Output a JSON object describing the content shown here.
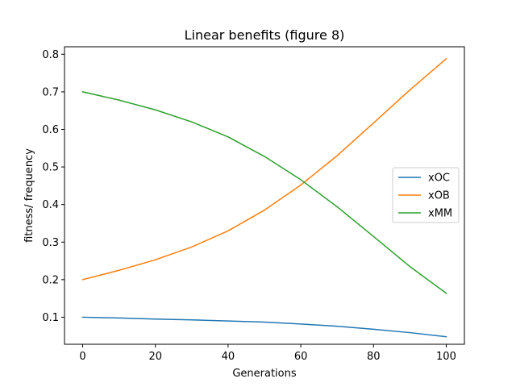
{
  "chart_data": {
    "type": "line",
    "title": "Linear benefits (figure 8)",
    "xlabel": "Generations",
    "ylabel": "fitness/ frequency",
    "xlim": [
      -5,
      105
    ],
    "ylim": [
      0.028,
      0.82
    ],
    "xticks": [
      0,
      20,
      40,
      60,
      80,
      100
    ],
    "yticks": [
      0.1,
      0.2,
      0.3,
      0.4,
      0.5,
      0.6,
      0.7,
      0.8
    ],
    "xtick_labels": [
      "0",
      "20",
      "40",
      "60",
      "80",
      "100"
    ],
    "ytick_labels": [
      "0.1",
      "0.2",
      "0.3",
      "0.4",
      "0.5",
      "0.6",
      "0.7",
      "0.8"
    ],
    "grid": false,
    "legend_position": "center-right",
    "x": [
      0,
      10,
      20,
      30,
      40,
      50,
      60,
      70,
      80,
      90,
      100
    ],
    "series": [
      {
        "name": "xOC",
        "color": "#1f77b4",
        "values": [
          0.1,
          0.098,
          0.095,
          0.093,
          0.09,
          0.087,
          0.082,
          0.076,
          0.068,
          0.059,
          0.048
        ]
      },
      {
        "name": "xOB",
        "color": "#ff7f0e",
        "values": [
          0.2,
          0.225,
          0.253,
          0.287,
          0.33,
          0.385,
          0.452,
          0.53,
          0.617,
          0.705,
          0.788
        ]
      },
      {
        "name": "xMM",
        "color": "#2ca02c",
        "values": [
          0.7,
          0.678,
          0.652,
          0.62,
          0.58,
          0.528,
          0.466,
          0.394,
          0.315,
          0.235,
          0.164
        ]
      }
    ]
  }
}
